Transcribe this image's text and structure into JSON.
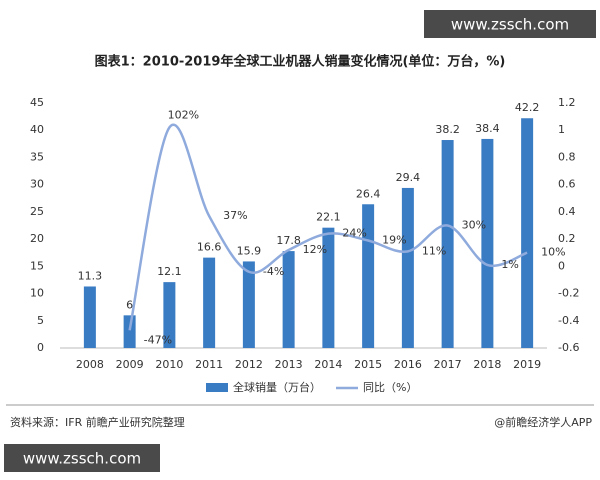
{
  "watermarks": [
    "www.zssch.com",
    "www.zssch.com"
  ],
  "source": "资料来源：IFR 前瞻产业研究院整理",
  "credit": "@前瞻经济学人APP",
  "chart_data": {
    "type": "bar",
    "title": "图表1：2010-2019年全球工业机器人销量变化情况(单位：万台，%)",
    "categories": [
      "2008",
      "2009",
      "2010",
      "2011",
      "2012",
      "2013",
      "2014",
      "2015",
      "2016",
      "2017",
      "2018",
      "2019"
    ],
    "series": [
      {
        "name": "全球销量（万台）",
        "type": "bar",
        "color": "#3a7cc3",
        "values": [
          11.3,
          6,
          12.1,
          16.6,
          15.9,
          17.8,
          22.1,
          26.4,
          29.4,
          38.2,
          38.4,
          42.2
        ]
      },
      {
        "name": "同比（%）",
        "type": "line",
        "axis": "y2",
        "color": "#8faadc",
        "values": [
          null,
          -0.47,
          1.02,
          0.37,
          -0.04,
          0.12,
          0.24,
          0.19,
          0.11,
          0.3,
          0.01,
          0.1
        ],
        "value_labels": [
          null,
          "-47%",
          "102%",
          "37%",
          "-4%",
          "12%",
          "24%",
          "19%",
          "11%",
          "30%",
          "1%",
          "10%"
        ]
      }
    ],
    "ylim": [
      0,
      45
    ],
    "yticks": [
      0,
      5,
      10,
      15,
      20,
      25,
      30,
      35,
      40,
      45
    ],
    "y2lim": [
      -0.6,
      1.2
    ],
    "y2ticks": [
      -0.6,
      -0.4,
      -0.2,
      0,
      0.2,
      0.4,
      0.6,
      0.8,
      1,
      1.2
    ],
    "legend": "bottom"
  }
}
